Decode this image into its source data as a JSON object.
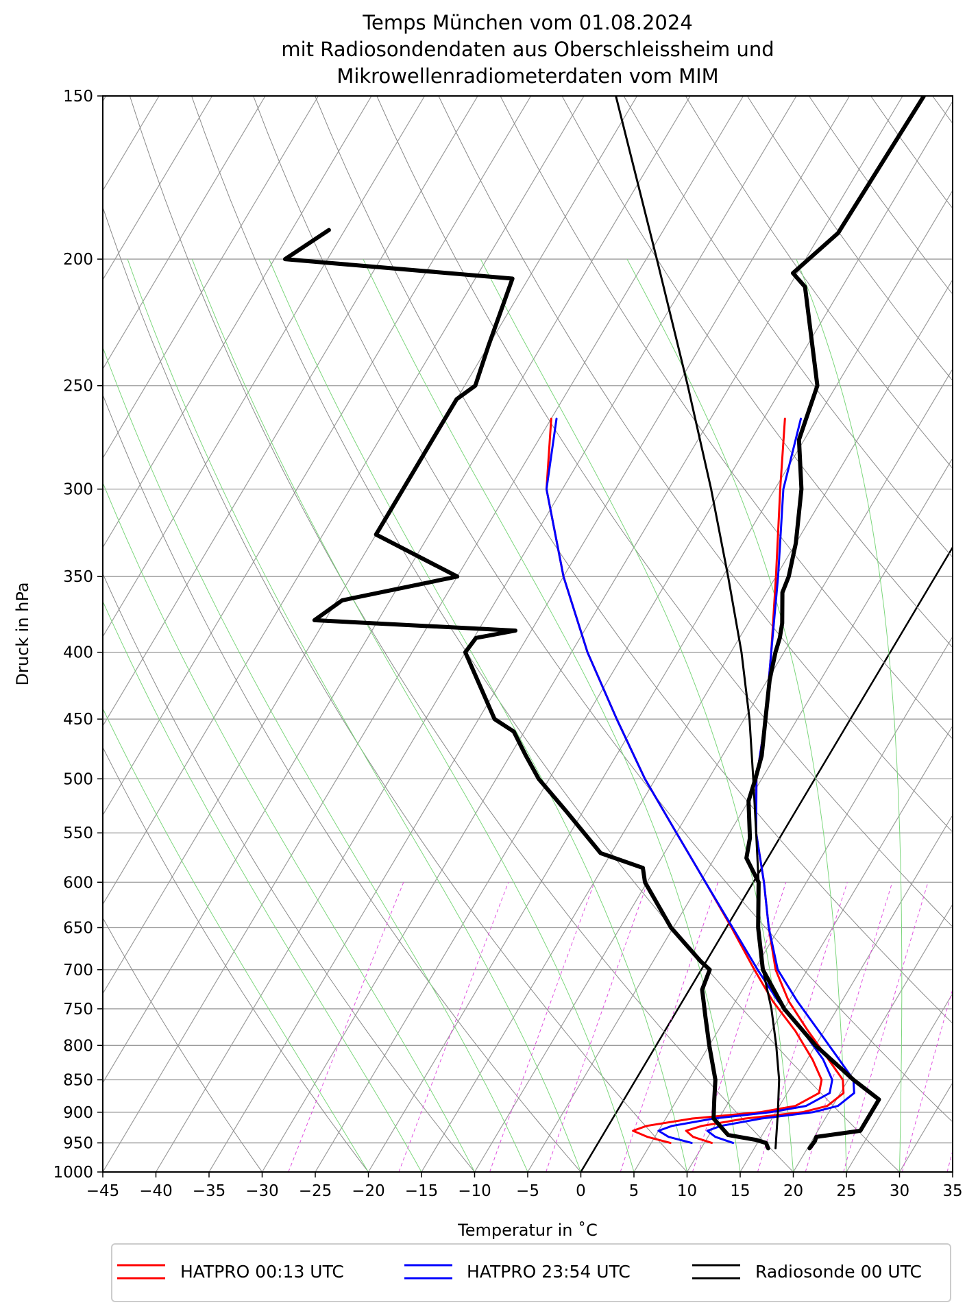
{
  "chart_data": {
    "type": "line",
    "diagram": "skew-T log-p",
    "title_lines": [
      "Temps München vom 01.08.2024",
      "mit Radiosondendaten aus Oberschleissheim und",
      "Mikrowellenradiometerdaten vom MIM"
    ],
    "xlabel": "Temperatur in $^\\circ$C",
    "xlabel_display": "Temperatur in ˚C",
    "ylabel": "Druck in hPa",
    "xlim": [
      -45,
      35
    ],
    "ylim": [
      1000,
      150
    ],
    "y_scale": "log",
    "x_ticks": [
      -45,
      -40,
      -35,
      -30,
      -25,
      -20,
      -15,
      -10,
      -5,
      0,
      5,
      10,
      15,
      20,
      25,
      30,
      35
    ],
    "x_tick_labels": [
      "−45",
      "−40",
      "−35",
      "−30",
      "−25",
      "−20",
      "−15",
      "−10",
      "−5",
      "0",
      "5",
      "10",
      "15",
      "20",
      "25",
      "30",
      "35"
    ],
    "y_ticks": [
      1000,
      950,
      900,
      850,
      800,
      750,
      700,
      650,
      600,
      550,
      500,
      450,
      400,
      350,
      300,
      250,
      200,
      150
    ],
    "grid": true,
    "legend_position": "bottom",
    "series": [
      {
        "name": "HATPRO 00:13 UTC",
        "color": "#ff0000",
        "profiles": [
          {
            "kind": "temperature",
            "pressure": [
              950,
              940,
              930,
              922,
              910,
              900,
              890,
              870,
              850,
              820,
              780,
              740,
              700,
              650,
              600,
              550,
              500,
              450,
              400,
              350,
              300,
              265
            ],
            "temperature": [
              10.7,
              8.6,
              7.6,
              8.8,
              12.5,
              17.5,
              19.5,
              20.3,
              19.5,
              17.0,
              13.5,
              10.0,
              7.0,
              4.0,
              1.0,
              -2.5,
              -5.5,
              -8.0,
              -11.2,
              -15.0,
              -19.5,
              -23.0
            ]
          },
          {
            "kind": "dewpoint",
            "pressure": [
              950,
              940,
              930,
              922,
              910,
              900,
              890,
              870,
              850,
              820,
              780,
              740,
              700,
              650,
              600,
              550,
              500,
              450,
              400,
              350,
              300,
              265
            ],
            "temperature": [
              6.8,
              4.3,
              2.6,
              3.6,
              7.5,
              13.5,
              16.5,
              18.0,
              17.5,
              15.5,
              12.3,
              8.5,
              5.0,
              0.5,
              -4.5,
              -10.0,
              -16.0,
              -22.0,
              -28.5,
              -35.0,
              -41.5,
              -45.0
            ]
          }
        ]
      },
      {
        "name": "HATPRO 23:54 UTC",
        "color": "#0000ff",
        "profiles": [
          {
            "kind": "temperature",
            "pressure": [
              950,
              940,
              930,
              922,
              910,
              900,
              890,
              870,
              850,
              820,
              780,
              740,
              700,
              650,
              600,
              550,
              500,
              450,
              400,
              350,
              300,
              265
            ],
            "temperature": [
              12.7,
              10.7,
              9.6,
              10.6,
              14.0,
              18.5,
              20.5,
              21.3,
              20.5,
              18.0,
              14.5,
              10.8,
              7.2,
              4.0,
              1.0,
              -2.5,
              -5.5,
              -8.0,
              -11.2,
              -14.8,
              -19.2,
              -21.5
            ]
          },
          {
            "kind": "dewpoint",
            "pressure": [
              950,
              940,
              930,
              922,
              910,
              900,
              890,
              870,
              850,
              820,
              780,
              740,
              700,
              650,
              600,
              550,
              500,
              450,
              400,
              350,
              300,
              265
            ],
            "temperature": [
              8.8,
              6.3,
              5.0,
              6.0,
              9.5,
              14.5,
              17.5,
              19.0,
              18.5,
              16.5,
              13.0,
              9.0,
              5.3,
              0.6,
              -4.5,
              -10.0,
              -16.0,
              -22.0,
              -28.5,
              -35.0,
              -41.5,
              -44.5
            ]
          }
        ]
      },
      {
        "name": "Radiosonde 00 UTC",
        "color": "#000000",
        "profiles": [
          {
            "kind": "temperature",
            "pressure": [
              959,
              947,
              940,
              930,
              900,
              880,
              850,
              800,
              750,
              700,
              650,
              600,
              575,
              555,
              520,
              500,
              480,
              450,
              420,
              400,
              390,
              380,
              360,
              350,
              330,
              300,
              275,
              250,
              210,
              205,
              191,
              150
            ],
            "temperature": [
              20.2,
              20.3,
              20.2,
              24.0,
              24.0,
              24.0,
              20.5,
              15.0,
              10.0,
              5.8,
              3.0,
              0.5,
              -2.0,
              -2.8,
              -5.0,
              -5.6,
              -6.3,
              -8.0,
              -9.8,
              -10.8,
              -11.2,
              -11.8,
              -13.5,
              -13.8,
              -15.0,
              -17.5,
              -20.5,
              -21.8,
              -28.5,
              -30.4,
              -28.4,
              -28.0
            ]
          },
          {
            "kind": "dewpoint",
            "pressure": [
              959,
              950,
              945,
              937,
              930,
              910,
              880,
              850,
              800,
              760,
              725,
              700,
              690,
              650,
              600,
              585,
              570,
              530,
              500,
              480,
              460,
              450,
              400,
              390,
              385,
              378,
              365,
              350,
              325,
              310,
              290,
              270,
              256,
              250,
              233,
              207,
              200,
              190
            ],
            "temperature": [
              16.3,
              15.8,
              14.7,
              11.8,
              11.2,
              9.5,
              8.5,
              7.5,
              5.0,
              3.0,
              1.2,
              0.8,
              -0.5,
              -5.2,
              -10.2,
              -11.2,
              -16.0,
              -21.5,
              -26.0,
              -28.5,
              -31.0,
              -33.5,
              -40.0,
              -39.8,
              -36.5,
              -56.0,
              -54.5,
              -45.0,
              -55.0,
              -55.0,
              -55.0,
              -55.0,
              -55.0,
              -54.0,
              -55.0,
              -56.5,
              -79.0,
              -76.5
            ]
          },
          {
            "kind": "parcel",
            "pressure": [
              959,
              900,
              850,
              800,
              750,
              700,
              650,
              600,
              550,
              500,
              450,
              400,
              350,
              300,
              250,
              200,
              150
            ],
            "temperature": [
              17.0,
              15.2,
              13.5,
              11.3,
              8.8,
              5.8,
              3.0,
              0.5,
              -2.5,
              -5.8,
              -9.5,
              -14.0,
              -19.5,
              -26.0,
              -34.0,
              -44.0,
              -57.0
            ]
          }
        ]
      }
    ],
    "reference_lines": {
      "dry_adiabats": true,
      "moist_adiabats": true,
      "mixing_ratio_lines": true,
      "isotherm_highlight_C": 0,
      "colors": {
        "isotherms": "#9b9b9b",
        "dry_adiabats": "#8a8a8a",
        "moist_adiabats": "#7cd67c",
        "mixing_ratio": "#e052e0"
      }
    }
  }
}
